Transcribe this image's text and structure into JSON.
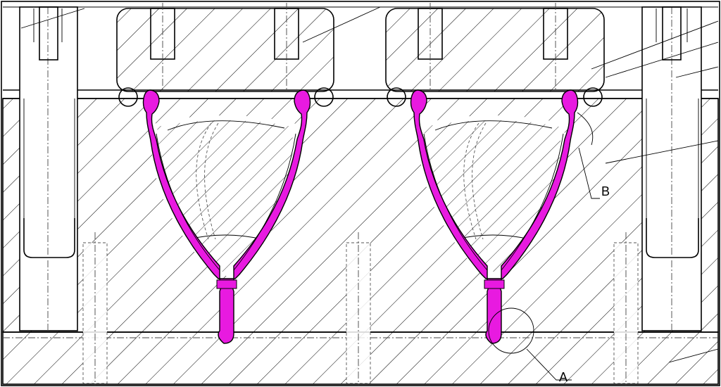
{
  "drawing": {
    "detail_labels": {
      "a": "A",
      "b": "B"
    },
    "colors": {
      "line": "#000000",
      "molded_part": "#e81ae0",
      "background": "#ffffff"
    }
  }
}
